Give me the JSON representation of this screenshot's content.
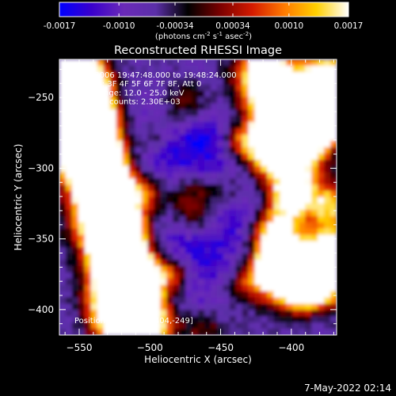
{
  "colors": {
    "background": "#000000",
    "foreground": "#ffffff",
    "colormap": [
      "#0000ff",
      "#3a00cc",
      "#6a2ab8",
      "#5b2fa8",
      "#000000",
      "#7a0000",
      "#d41a00",
      "#ff7a00",
      "#ffd000",
      "#ffffff"
    ]
  },
  "colorbar": {
    "ticks": [
      "-0.0017",
      "-0.0010",
      "-0.00034",
      "0.00034",
      "0.0010",
      "0.0017"
    ],
    "units_label": "(photons cm",
    "units_exp1": "-2",
    "units_mid1": " s",
    "units_exp2": "-1",
    "units_mid2": " asec",
    "units_exp3": "-2",
    "units_end": ")"
  },
  "chart_data": {
    "type": "heatmap",
    "title": "Reconstructed RHESSI Image",
    "xlabel": "Heliocentric X (arcsec)",
    "ylabel": "Heliocentric Y (arcsec)",
    "xlim": [
      -564,
      -368
    ],
    "ylim": [
      -418,
      -223
    ],
    "xticks": [
      -550,
      -500,
      -450,
      -400
    ],
    "yticks": [
      -250,
      -300,
      -350,
      -400
    ],
    "xtick_labels": [
      "−550",
      "−500",
      "−450",
      "−400"
    ],
    "ytick_labels": [
      "−250",
      "−300",
      "−350",
      "−400"
    ],
    "value_range": [
      -0.0017,
      0.0017
    ],
    "annotations": [
      "13-Aug-2006 19:47:48.000 to 19:48:24.000",
      "Detectors: 3F 4F 5F 6F 7F 8F, Att 0",
      "Energy Range: 12.0 - 25.0 keV",
      "Clean     Total counts: 2.30E+03"
    ],
    "peak_label": "Position of Peak = [-404,-249]",
    "peak_position": [
      -404,
      -249
    ]
  },
  "timestamp": "7-May-2022 02:14"
}
